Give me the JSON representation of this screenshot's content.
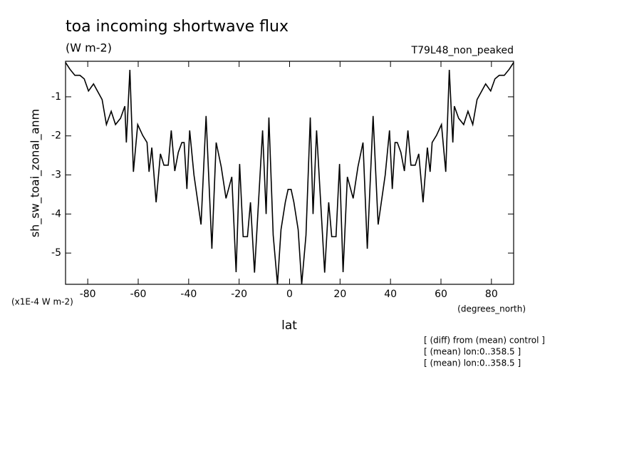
{
  "chart_data": {
    "type": "line",
    "title": "toa incoming shortwave flux",
    "subtitle": "(W m-2)",
    "run_label": "T79L48_non_peaked",
    "y_label": "sh_sw_toai_zonal_anm",
    "y_units": "(x1E-4 W m-2)",
    "x_units": "(degrees_north)",
    "x_label": "lat",
    "notes": [
      "[ (diff) from (mean) control ]",
      "[ (mean) lon:0..358.5 ]",
      "[ (mean) lon:0..358.5 ]"
    ],
    "color": "#000000",
    "x": [
      -88.8,
      -87.1,
      -85.1,
      -83.1,
      -81.4,
      -79.7,
      -77.7,
      -76.0,
      -74.3,
      -72.6,
      -70.7,
      -69.0,
      -67.0,
      -65.3,
      -64.7,
      -63.3,
      -61.9,
      -60.2,
      -58.2,
      -56.5,
      -55.7,
      -54.6,
      -52.9,
      -51.2,
      -49.8,
      -48.1,
      -46.9,
      -45.5,
      -44.1,
      -42.7,
      -41.8,
      -40.7,
      -39.6,
      -37.9,
      -35.1,
      -33.1,
      -30.8,
      -29.1,
      -27.1,
      -25.2,
      -22.9,
      -21.2,
      -19.8,
      -18.4,
      -16.7,
      -15.5,
      -13.9,
      -10.7,
      -9.3,
      -8.2,
      -6.5,
      -4.8,
      -3.4,
      -1.7,
      -0.6,
      0.6,
      1.7,
      3.4,
      4.8,
      6.5,
      8.2,
      9.3,
      10.7,
      13.9,
      15.5,
      16.7,
      18.4,
      19.8,
      21.2,
      22.9,
      25.2,
      27.1,
      29.1,
      30.8,
      33.1,
      35.1,
      37.9,
      39.6,
      40.7,
      41.8,
      42.7,
      44.1,
      45.5,
      46.9,
      48.1,
      49.8,
      51.2,
      52.9,
      54.6,
      55.7,
      56.5,
      58.2,
      60.2,
      61.9,
      63.3,
      64.7,
      65.3,
      67.0,
      69.0,
      70.7,
      72.6,
      74.3,
      76.0,
      77.7,
      79.7,
      81.4,
      83.1,
      85.1,
      87.1,
      88.8
    ],
    "values": [
      -0.12,
      -0.29,
      -0.45,
      -0.45,
      -0.54,
      -0.85,
      -0.67,
      -0.87,
      -1.07,
      -1.71,
      -1.37,
      -1.71,
      -1.55,
      -1.24,
      -2.17,
      -0.31,
      -2.92,
      -1.71,
      -1.99,
      -2.17,
      -2.92,
      -2.3,
      -3.7,
      -2.46,
      -2.75,
      -2.75,
      -1.86,
      -2.9,
      -2.42,
      -2.17,
      -2.17,
      -3.36,
      -1.86,
      -3.0,
      -4.27,
      -1.49,
      -4.89,
      -2.17,
      -2.79,
      -3.6,
      -3.05,
      -5.49,
      -2.72,
      -4.58,
      -4.58,
      -3.7,
      -5.5,
      -1.86,
      -4.0,
      -1.53,
      -4.54,
      -5.8,
      -4.4,
      -3.7,
      -3.37,
      -3.37,
      -3.7,
      -4.4,
      -5.8,
      -4.54,
      -1.53,
      -4.0,
      -1.86,
      -5.5,
      -3.7,
      -4.58,
      -4.58,
      -2.72,
      -5.49,
      -3.05,
      -3.6,
      -2.79,
      -2.17,
      -4.89,
      -1.49,
      -4.27,
      -3.0,
      -1.86,
      -3.36,
      -2.17,
      -2.17,
      -2.42,
      -2.9,
      -1.86,
      -2.75,
      -2.75,
      -2.46,
      -3.7,
      -2.3,
      -2.92,
      -2.17,
      -1.99,
      -1.71,
      -2.92,
      -0.31,
      -2.17,
      -1.24,
      -1.55,
      -1.71,
      -1.37,
      -1.71,
      -1.07,
      -0.87,
      -0.67,
      -0.85,
      -0.54,
      -0.45,
      -0.45,
      -0.29,
      -0.12
    ],
    "xlim": [
      -88.8,
      88.8
    ],
    "ylim": [
      -5.8,
      -0.09
    ],
    "xticks": [
      -80,
      -60,
      -40,
      -20,
      0,
      20,
      40,
      60,
      80
    ],
    "yticks": [
      -1,
      -2,
      -3,
      -4,
      -5
    ]
  }
}
